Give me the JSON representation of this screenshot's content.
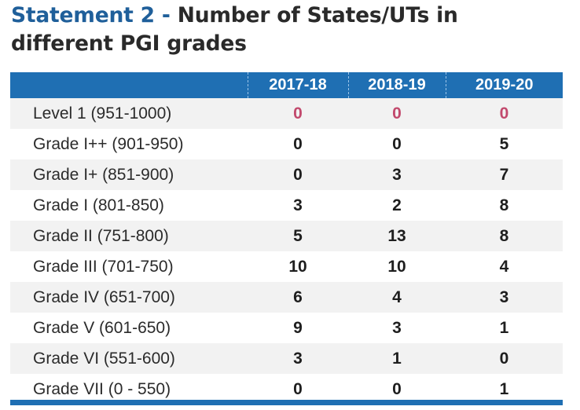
{
  "title": {
    "prefix": "Statement 2 -",
    "line1": "Number of States/UTs in",
    "line2": "different PGI grades"
  },
  "table": {
    "headers": [
      "",
      "2017-18",
      "2018-19",
      "2019-20"
    ],
    "rows": [
      {
        "label": "Level 1 (951-1000)",
        "values": [
          "0",
          "0",
          "0"
        ]
      },
      {
        "label": "Grade I++ (901-950)",
        "values": [
          "0",
          "0",
          "5"
        ]
      },
      {
        "label": "Grade I+ (851-900)",
        "values": [
          "0",
          "3",
          "7"
        ]
      },
      {
        "label": "Grade I (801-850)",
        "values": [
          "3",
          "2",
          "8"
        ]
      },
      {
        "label": "Grade II (751-800)",
        "values": [
          "5",
          "13",
          "8"
        ]
      },
      {
        "label": "Grade III (701-750)",
        "values": [
          "10",
          "10",
          "4"
        ]
      },
      {
        "label": "Grade IV (651-700)",
        "values": [
          "6",
          "4",
          "3"
        ]
      },
      {
        "label": "Grade V (601-650)",
        "values": [
          "9",
          "3",
          "1"
        ]
      },
      {
        "label": "Grade VI (551-600)",
        "values": [
          "3",
          "1",
          "0"
        ]
      },
      {
        "label": "Grade VII (0 - 550)",
        "values": [
          "0",
          "0",
          "1"
        ]
      }
    ]
  },
  "colors": {
    "header_bg": "#1f6fb3",
    "title_accent": "#1f5f9a",
    "level1_values": "#c2496d"
  }
}
